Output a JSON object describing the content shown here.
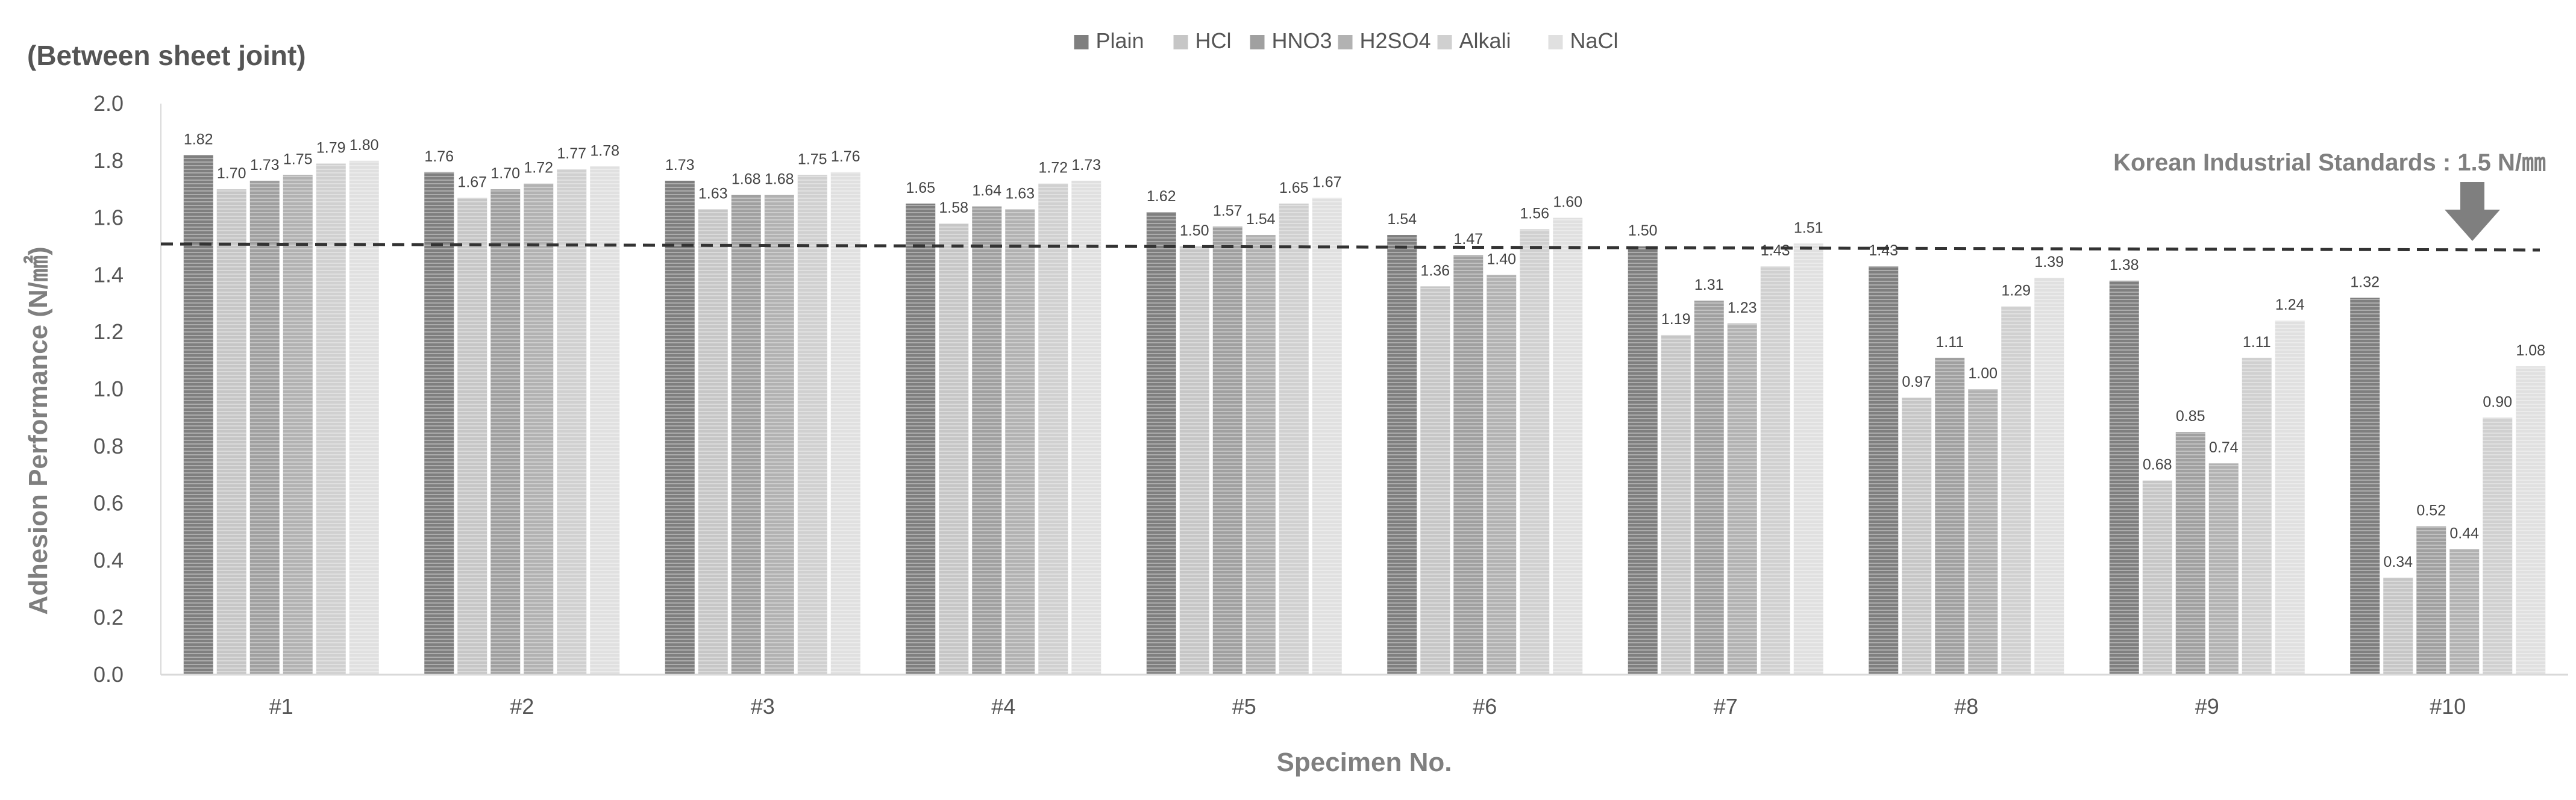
{
  "chart_data": {
    "type": "bar",
    "title": "(Between sheet joint)",
    "xlabel": "Specimen No.",
    "ylabel": "Adhesion Performance (N/㎟)",
    "ylim": [
      0,
      2.0
    ],
    "yticks": [
      "0.0",
      "0.2",
      "0.4",
      "0.6",
      "0.8",
      "1.0",
      "1.2",
      "1.4",
      "1.6",
      "1.8",
      "2.0"
    ],
    "legend_position": "top-center",
    "grid": false,
    "categories": [
      "#1",
      "#2",
      "#3",
      "#4",
      "#5",
      "#6",
      "#7",
      "#8",
      "#9",
      "#10"
    ],
    "series": [
      {
        "name": "Plain",
        "color": "#7f7f7f",
        "values": [
          1.82,
          1.76,
          1.73,
          1.65,
          1.62,
          1.54,
          1.5,
          1.43,
          1.38,
          1.32
        ],
        "labels": [
          "1.82",
          "1.76",
          "1.73",
          "1.65",
          "1.62",
          "1.54",
          "1.50",
          "1.43",
          "1.38",
          "1.32"
        ]
      },
      {
        "name": "HCl",
        "color": "#c6c6c6",
        "values": [
          1.7,
          1.67,
          1.63,
          1.58,
          1.5,
          1.36,
          1.19,
          0.97,
          0.68,
          0.34
        ],
        "labels": [
          "1.70",
          "1.67",
          "1.63",
          "1.58",
          "1.50",
          "1.36",
          "1.19",
          "0.97",
          "0.68",
          "0.34"
        ]
      },
      {
        "name": "HNO3",
        "color": "#a0a0a0",
        "values": [
          1.73,
          1.7,
          1.68,
          1.64,
          1.57,
          1.47,
          1.31,
          1.11,
          0.85,
          0.52
        ],
        "labels": [
          "1.73",
          "1.70",
          "1.68",
          "1.64",
          "1.57",
          "1.47",
          "1.31",
          "1.11",
          "0.85",
          "0.52"
        ]
      },
      {
        "name": "H2SO4",
        "color": "#b2b2b2",
        "values": [
          1.75,
          1.72,
          1.68,
          1.63,
          1.54,
          1.4,
          1.23,
          1.0,
          0.74,
          0.44
        ],
        "labels": [
          "1.75",
          "1.72",
          "1.68",
          "1.63",
          "1.54",
          "1.40",
          "1.23",
          "1.00",
          "0.74",
          "0.44"
        ]
      },
      {
        "name": "Alkali",
        "color": "#d0d0d0",
        "values": [
          1.79,
          1.77,
          1.75,
          1.72,
          1.65,
          1.56,
          1.43,
          1.29,
          1.11,
          0.9
        ],
        "labels": [
          "1.79",
          "1.77",
          "1.75",
          "1.72",
          "1.65",
          "1.56",
          "1.43",
          "1.29",
          "1.11",
          "0.90"
        ]
      },
      {
        "name": "NaCl",
        "color": "#e0e0e0",
        "values": [
          1.8,
          1.78,
          1.76,
          1.73,
          1.67,
          1.6,
          1.51,
          1.39,
          1.24,
          1.08
        ],
        "labels": [
          "1.80",
          "1.78",
          "1.76",
          "1.73",
          "1.67",
          "1.60",
          "1.51",
          "1.39",
          "1.24",
          "1.08"
        ]
      }
    ],
    "reference_line": {
      "value": 1.5,
      "label": "Korean Industrial Standards : 1.5 N/㎜",
      "arrow_color": "#7f7f7f"
    }
  }
}
